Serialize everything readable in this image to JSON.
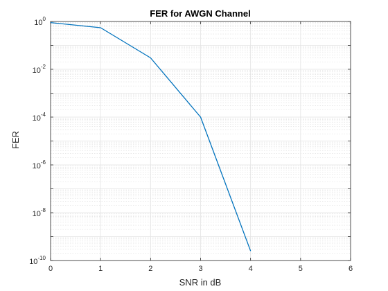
{
  "chart_data": {
    "type": "line",
    "title": "FER for AWGN Channel",
    "xlabel": "SNR in dB",
    "ylabel": "FER",
    "x_axis": {
      "scale": "linear",
      "range": [
        0,
        6
      ],
      "ticks": [
        0,
        1,
        2,
        3,
        4,
        5,
        6
      ],
      "tick_labels": [
        "0",
        "1",
        "2",
        "3",
        "4",
        "5",
        "6"
      ]
    },
    "y_axis": {
      "scale": "log",
      "range": [
        1e-10,
        1
      ],
      "tick_labels": [
        {
          "base": "10",
          "exp": "0",
          "value": 1
        },
        {
          "base": "10",
          "exp": "-2",
          "value": 0.01
        },
        {
          "base": "10",
          "exp": "-4",
          "value": 0.0001
        },
        {
          "base": "10",
          "exp": "-6",
          "value": 1e-06
        },
        {
          "base": "10",
          "exp": "-8",
          "value": 1e-08
        },
        {
          "base": "10",
          "exp": "-10",
          "value": 1e-10
        }
      ]
    },
    "grid": true,
    "minor_grid": true,
    "series": [
      {
        "color": "#0072BD",
        "x": [
          0,
          1,
          2,
          3,
          4
        ],
        "y": [
          0.9,
          0.55,
          0.03,
          0.0001,
          2.5e-10
        ]
      }
    ]
  }
}
